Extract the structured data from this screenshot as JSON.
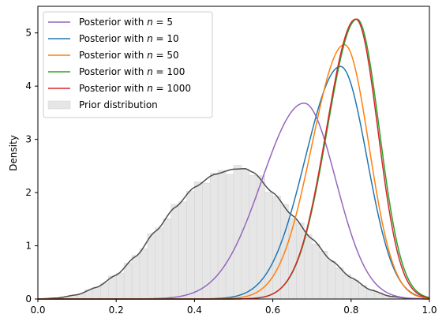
{
  "chart_data": {
    "type": "line",
    "title": "",
    "xlabel": "",
    "ylabel": "Density",
    "xlim": [
      0.0,
      1.0
    ],
    "ylim": [
      0,
      5.5
    ],
    "xticks": [
      "0.0",
      "0.2",
      "0.4",
      "0.6",
      "0.8",
      "1.0"
    ],
    "yticks": [
      "0",
      "1",
      "2",
      "3",
      "4",
      "5"
    ],
    "grid": false,
    "legend_position": "top-left",
    "series": [
      {
        "name": "Posterior with n = 5",
        "name_prefix": "Posterior with ",
        "name_var": "n",
        "name_value": "= 5",
        "color": "#9467bd",
        "mode": 0.68,
        "peak": 3.68,
        "sd": 0.108
      },
      {
        "name": "Posterior with n = 10",
        "name_prefix": "Posterior with ",
        "name_var": "n",
        "name_value": "= 10",
        "color": "#1f77b4",
        "mode": 0.773,
        "peak": 4.37,
        "sd": 0.09
      },
      {
        "name": "Posterior with n = 50",
        "name_prefix": "Posterior with ",
        "name_var": "n",
        "name_value": "= 50",
        "color": "#ff7f0e",
        "mode": 0.783,
        "peak": 4.78,
        "sd": 0.083
      },
      {
        "name": "Posterior with n = 100",
        "name_prefix": "Posterior with ",
        "name_var": "n",
        "name_value": "= 100",
        "color": "#2ca02c",
        "mode": 0.815,
        "peak": 5.26,
        "sd": 0.076
      },
      {
        "name": "Posterior with n = 1000",
        "name_prefix": "Posterior with ",
        "name_var": "n",
        "name_value": "= 1000",
        "color": "#d62728",
        "mode": 0.812,
        "peak": 5.26,
        "sd": 0.075
      }
    ],
    "prior": {
      "name": "Prior distribution",
      "kde_color": "#4d4d4d",
      "hist_color": "#e6e6e6",
      "kde": {
        "x": [
          0.0,
          0.05,
          0.1,
          0.15,
          0.2,
          0.25,
          0.3,
          0.35,
          0.4,
          0.45,
          0.5,
          0.53,
          0.55,
          0.6,
          0.65,
          0.7,
          0.75,
          0.8,
          0.85,
          0.9,
          0.95,
          1.0
        ],
        "y": [
          0.0,
          0.02,
          0.08,
          0.22,
          0.45,
          0.8,
          1.27,
          1.72,
          2.1,
          2.34,
          2.44,
          2.45,
          2.38,
          2.0,
          1.57,
          1.13,
          0.72,
          0.4,
          0.17,
          0.05,
          0.01,
          0.0
        ]
      }
    }
  }
}
